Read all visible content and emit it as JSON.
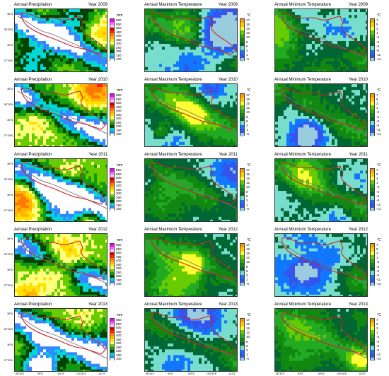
{
  "columns": [
    {
      "id": "precip",
      "title": "Annual Precipitation",
      "unit": "mm",
      "ticks": [
        "650",
        "550",
        "500",
        "450",
        "400",
        "350",
        "300",
        "250",
        "200",
        "150",
        "100"
      ],
      "colors": [
        "#f000ff",
        "#ff66ff",
        "#ffd0ff",
        "#c80000",
        "#ff2200",
        "#ff7a00",
        "#ffb400",
        "#ffe000",
        "#ffff80",
        "#66cc00",
        "#119911",
        "#004400",
        "#00d8d8",
        "#3388ff",
        "#ffffff"
      ]
    },
    {
      "id": "tmax",
      "title": "Annual Maximum Temperature",
      "unit": "°C",
      "ticks": [
        "17",
        "16",
        "15",
        "12",
        "10",
        "8",
        "6",
        "3",
        "1",
        "-5"
      ],
      "colors": [
        "#ff9900",
        "#ffcc00",
        "#ffff33",
        "#66cc00",
        "#22aa22",
        "#118811",
        "#006633",
        "#77ddcc",
        "#1177ff",
        "#3355ee",
        "#99ccdd"
      ]
    },
    {
      "id": "tmin",
      "title": "Annual Minimum Temperature",
      "unit": "°C",
      "ticks": [
        "7",
        "5",
        "3",
        "1",
        "-3",
        "-5",
        "-8",
        "-9",
        "-11",
        "-14"
      ],
      "colors": [
        "#ff9900",
        "#ffcc00",
        "#ffff33",
        "#66cc00",
        "#22aa22",
        "#118811",
        "#006633",
        "#77ddcc",
        "#1177ff",
        "#3355ee",
        "#99ccdd"
      ]
    }
  ],
  "years": [
    "Year 2009",
    "Year 2010",
    "Year 2011",
    "Year 2012",
    "Year 2013"
  ],
  "lat_labels": [
    "38°N",
    "36°30'N",
    "36°N",
    "37°30'N"
  ],
  "lon_labels": [
    "98°30'E",
    "99°E",
    "100°E",
    "100°30'E",
    "101°E"
  ],
  "map_palettes": {
    "precip": [
      "#c80000",
      "#ff2200",
      "#ff7a00",
      "#ffb400",
      "#ffe000",
      "#ffff80",
      "#66cc00",
      "#119911",
      "#004400",
      "#00d8d8",
      "#3388ff",
      "#ffffff"
    ],
    "tmax": [
      "#ffff33",
      "#66cc00",
      "#22aa22",
      "#118811",
      "#006633",
      "#77ddcc",
      "#1177ff",
      "#3355ee",
      "#99ccdd"
    ],
    "tmin": [
      "#ffff33",
      "#66cc00",
      "#22aa22",
      "#118811",
      "#006633",
      "#77ddcc",
      "#1177ff",
      "#3355ee",
      "#99ccdd"
    ]
  },
  "boundary_color": "#cc2222",
  "river_color": "#7a6a8a"
}
